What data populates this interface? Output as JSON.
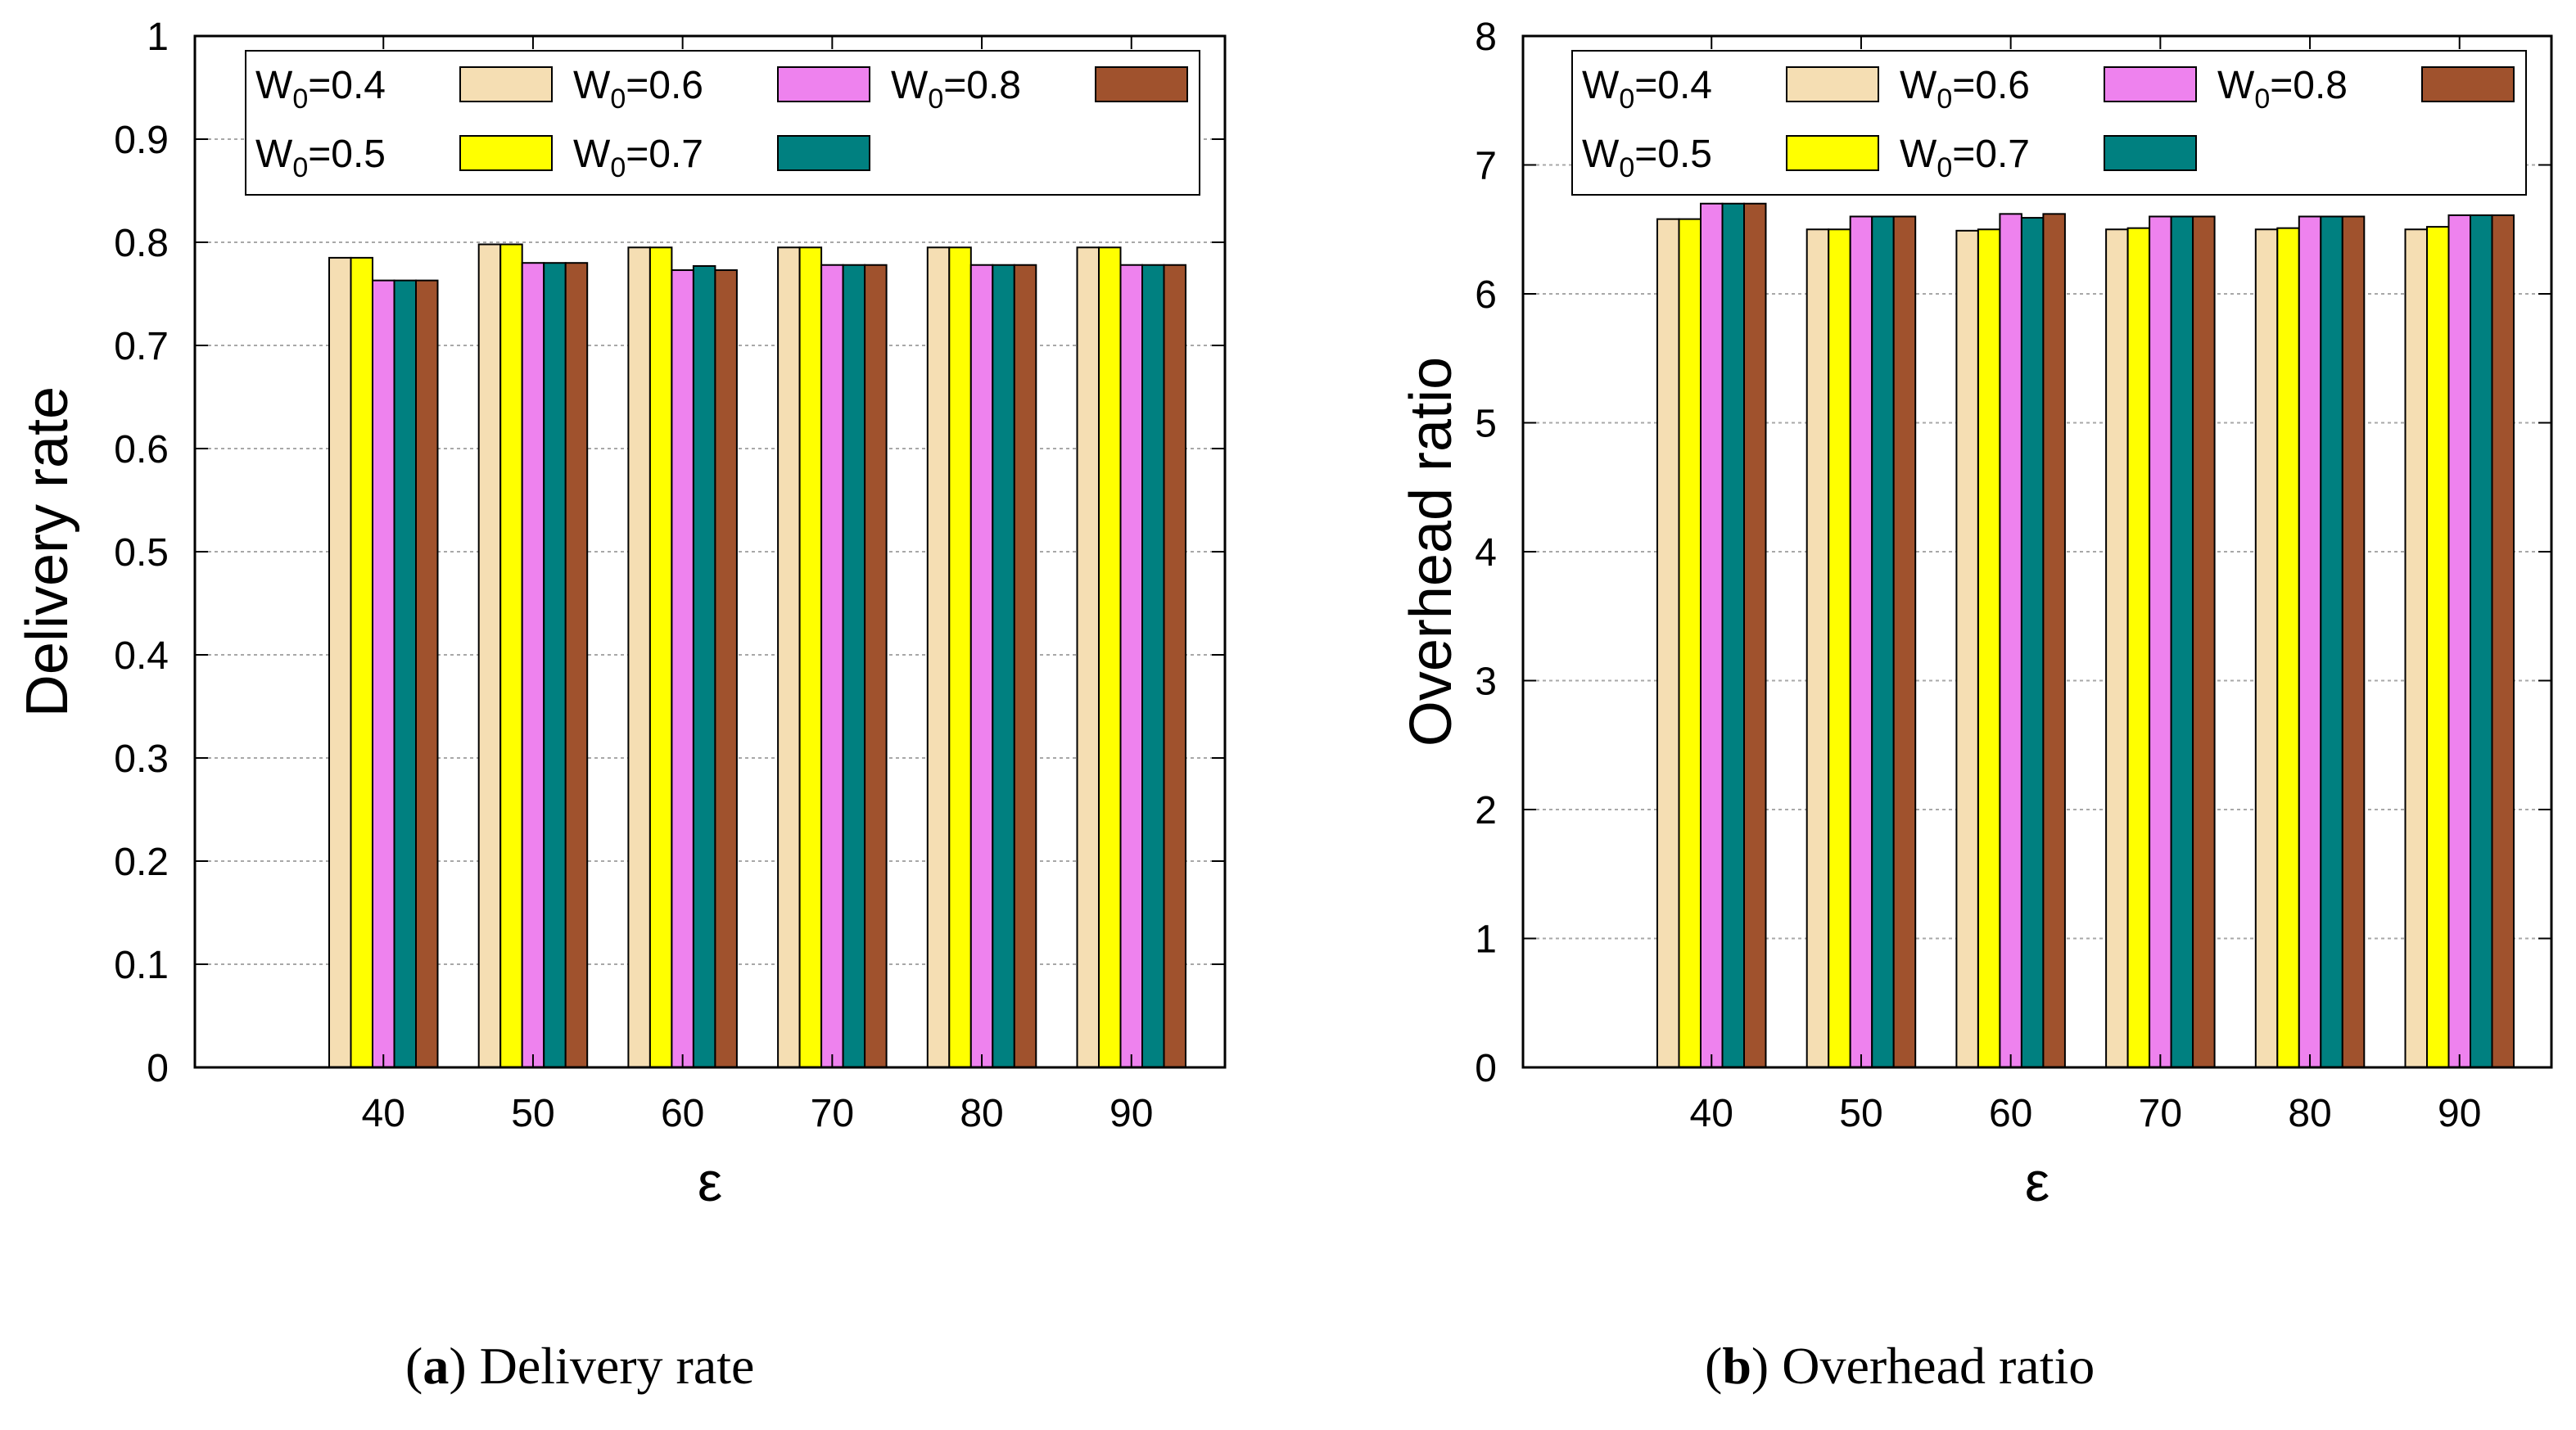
{
  "colors": {
    "W0=0.4": "#f5deb3",
    "W0=0.5": "#ffff00",
    "W0=0.6": "#ee82ee",
    "W0=0.7": "#008080",
    "W0=0.8": "#a0522d"
  },
  "legend_text": {
    "prefix": "W",
    "sub": "0"
  },
  "captions": {
    "a": {
      "letter": "a",
      "text": "Delivery rate"
    },
    "b": {
      "letter": "b",
      "text": "Overhead ratio"
    }
  },
  "chart_data": [
    {
      "type": "bar",
      "ylabel": "Delivery rate",
      "xlabel": "ε",
      "categories": [
        "40",
        "50",
        "60",
        "70",
        "80",
        "90"
      ],
      "ylim": [
        0,
        1
      ],
      "yticks": [
        "0",
        "0.1",
        "0.2",
        "0.3",
        "0.4",
        "0.5",
        "0.6",
        "0.7",
        "0.8",
        "0.9",
        "1"
      ],
      "grid": true,
      "legend_position": "top",
      "series": [
        {
          "name": "=0.4",
          "key": "W0=0.4",
          "values": [
            0.785,
            0.798,
            0.795,
            0.795,
            0.795,
            0.795
          ]
        },
        {
          "name": "=0.5",
          "key": "W0=0.5",
          "values": [
            0.785,
            0.798,
            0.795,
            0.795,
            0.795,
            0.795
          ]
        },
        {
          "name": "=0.6",
          "key": "W0=0.6",
          "values": [
            0.763,
            0.78,
            0.773,
            0.778,
            0.778,
            0.778
          ]
        },
        {
          "name": "=0.7",
          "key": "W0=0.7",
          "values": [
            0.763,
            0.78,
            0.777,
            0.778,
            0.778,
            0.778
          ]
        },
        {
          "name": "=0.8",
          "key": "W0=0.8",
          "values": [
            0.763,
            0.78,
            0.773,
            0.778,
            0.778,
            0.778
          ]
        }
      ]
    },
    {
      "type": "bar",
      "ylabel": "Overhead ratio",
      "xlabel": "ε",
      "categories": [
        "40",
        "50",
        "60",
        "70",
        "80",
        "90"
      ],
      "ylim": [
        0,
        8
      ],
      "yticks": [
        "0",
        "1",
        "2",
        "3",
        "4",
        "5",
        "6",
        "7",
        "8"
      ],
      "grid": true,
      "legend_position": "top",
      "series": [
        {
          "name": "=0.4",
          "key": "W0=0.4",
          "values": [
            6.58,
            6.5,
            6.49,
            6.5,
            6.5,
            6.5
          ]
        },
        {
          "name": "=0.5",
          "key": "W0=0.5",
          "values": [
            6.58,
            6.5,
            6.5,
            6.51,
            6.51,
            6.52
          ]
        },
        {
          "name": "=0.6",
          "key": "W0=0.6",
          "values": [
            6.7,
            6.6,
            6.62,
            6.6,
            6.6,
            6.61
          ]
        },
        {
          "name": "=0.7",
          "key": "W0=0.7",
          "values": [
            6.7,
            6.6,
            6.59,
            6.6,
            6.6,
            6.61
          ]
        },
        {
          "name": "=0.8",
          "key": "W0=0.8",
          "values": [
            6.7,
            6.6,
            6.62,
            6.6,
            6.6,
            6.61
          ]
        }
      ]
    }
  ]
}
